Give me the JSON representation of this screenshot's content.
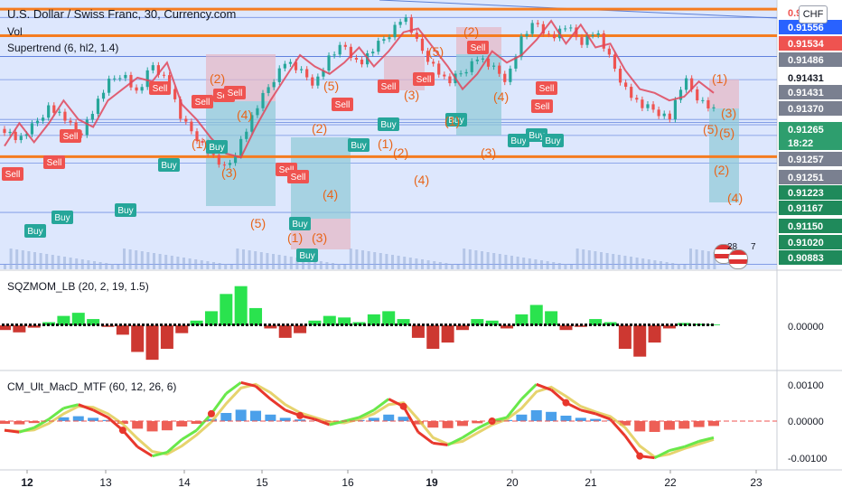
{
  "header": {
    "symbol_title": "U.S. Dollar / Swiss Franc, 30, Currency.com",
    "vol_label": "Vol",
    "supertrend_label": "Supertrend (6, hl2, 1.4)",
    "currency_badge": "CHF"
  },
  "indicators": {
    "sqzmom_label": "SQZMOM_LB (20, 2, 19, 1.5)",
    "macd_label": "CM_Ult_MacD_MTF (60, 12, 26, 6)"
  },
  "price_axis": {
    "labels": [
      "0.91556",
      "0.91534",
      "0.91486",
      "0.91431",
      "0.91431",
      "0.91370",
      "0.91265",
      "18:22",
      "0.91257",
      "0.91251",
      "0.91223",
      "0.91167",
      "0.91150",
      "0.91020",
      "0.90883"
    ],
    "top_partial": "0.91"
  },
  "sqz_axis": [
    "0.00000"
  ],
  "macd_axis": [
    "0.00100",
    "0.00000",
    "-0.00100"
  ],
  "time_axis": [
    "12",
    "13",
    "14",
    "15",
    "16",
    "19",
    "20",
    "21",
    "22",
    "23"
  ],
  "events": {
    "count_a": "28",
    "count_b": "7"
  },
  "signals": {
    "sell_label": "Sell",
    "buy_label": "Buy",
    "sell_count": 15,
    "buy_count": 13
  },
  "wave_labels": [
    "(1)",
    "(2)",
    "(3)",
    "(4)",
    "(5)",
    "(1)",
    "(2)",
    "(3)",
    "(4)",
    "(5)",
    "(1)",
    "(2)",
    "(3)",
    "(4)",
    "(5)",
    "(1)",
    "(2)",
    "(3)",
    "(4)",
    "(5)",
    "(1)",
    "(2)",
    "(3)",
    "(4)",
    "(5)"
  ],
  "colors": {
    "up": "#26a69a",
    "down": "#ef5350",
    "supertrend_up": "#2e9e6e",
    "supertrend_down": "#e0475a",
    "orange_level": "#f57c20",
    "axis_dark": "#131722",
    "price_tag": "#2962ff",
    "sqz_green": "#13e03b",
    "sqz_red": "#c8221b",
    "macd_green": "#69e84a",
    "macd_red": "#e8372c",
    "wave_text": "#e8651a"
  },
  "chart_data": [
    {
      "type": "line",
      "title": "U.S. Dollar / Swiss Franc, 30, Currency.com",
      "x_ticks": [
        "12",
        "13",
        "14",
        "15",
        "16",
        "19",
        "20",
        "21",
        "22",
        "23"
      ],
      "ylim": [
        0.9087,
        0.9158
      ],
      "price_levels": [
        0.91556,
        0.91534,
        0.91486,
        0.91431,
        0.91431,
        0.9137,
        0.91265,
        0.91257,
        0.91251,
        0.91223,
        0.91167,
        0.9115,
        0.9102,
        0.90883
      ],
      "horizontal_levels": [
        {
          "name": "resistance",
          "value": 0.91556
        },
        {
          "name": "resistance",
          "value": 0.91486
        },
        {
          "name": "support",
          "value": 0.91167
        }
      ],
      "series": [
        {
          "values": [
            0.9124,
            0.9121,
            0.9125,
            0.913,
            0.9127,
            0.9122,
            0.9129,
            0.9136,
            0.9139,
            0.9133,
            0.9141,
            0.9137,
            0.9126,
            0.9122,
            0.9117,
            0.9113,
            0.9121,
            0.9129,
            0.9136,
            0.9142,
            0.9139,
            0.9136,
            0.9143,
            0.9146,
            0.9141,
            0.9145,
            0.9149,
            0.9154,
            0.9146,
            0.9141,
            0.9136,
            0.9139,
            0.9143,
            0.914,
            0.9137,
            0.9148,
            0.9152,
            0.9148,
            0.9151,
            0.9147,
            0.915,
            0.9142,
            0.9135,
            0.913,
            0.9129,
            0.9127,
            0.9137,
            0.9132,
            0.9129
          ]
        }
      ]
    },
    {
      "type": "bar",
      "title": "SQZMOM_LB (20, 2, 19, 1.5)",
      "ylim": [
        -0.0006,
        0.0006
      ],
      "series": [
        {
          "values": [
            -6e-05,
            -9e-05,
            -3e-05,
            4e-05,
            0.00012,
            0.00016,
            8e-05,
            -2e-05,
            -0.00012,
            -0.00034,
            -0.00044,
            -0.0003,
            -0.0001,
            6e-05,
            0.00018,
            0.0004,
            0.0005,
            0.00022,
            -4e-05,
            -0.00016,
            -0.0001,
            6e-05,
            0.00012,
            0.0001,
            4e-05,
            0.00014,
            0.00018,
            8e-05,
            -0.00016,
            -0.0003,
            -0.00022,
            -6e-05,
            8e-05,
            6e-05,
            -4e-05,
            0.00014,
            0.00026,
            0.00018,
            -6e-05,
            -2e-05,
            8e-05,
            4e-05,
            -0.0003,
            -0.0004,
            -0.00022,
            -4e-05,
            3e-05,
            2e-05,
            1e-05
          ]
        }
      ]
    },
    {
      "type": "line",
      "title": "CM_Ult_MacD_MTF (60, 12, 26, 6)",
      "ylim": [
        -0.00118,
        0.00118
      ],
      "series": [
        {
          "values": [
            -0.00025,
            -0.0003,
            -0.00018,
            5e-05,
            0.00035,
            0.00045,
            0.0003,
            0.0001,
            -0.00025,
            -0.0007,
            -0.00095,
            -0.00085,
            -0.0005,
            -0.00025,
            0.0002,
            0.00075,
            0.00105,
            0.00095,
            0.0006,
            0.0003,
            0.00015,
            5e-05,
            -0.0001,
            0.0,
            0.0001,
            0.0003,
            0.0006,
            0.0004,
            -0.0003,
            -0.0006,
            -0.00065,
            -0.00045,
            -0.0002,
            0.0,
            0.0001,
            0.0006,
            0.001,
            0.00085,
            0.0005,
            0.0003,
            0.0002,
            5e-05,
            -0.0004,
            -0.00095,
            -0.001,
            -0.0008,
            -0.0007,
            -0.00055,
            -0.00045
          ]
        }
      ]
    }
  ]
}
